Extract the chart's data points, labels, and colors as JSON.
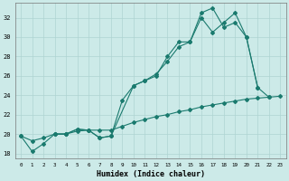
{
  "xlabel": "Humidex (Indice chaleur)",
  "bg_color": "#cceae8",
  "grid_color": "#aed4d2",
  "line_color": "#1a7a6e",
  "xlim": [
    -0.5,
    23.5
  ],
  "ylim": [
    17.5,
    33.5
  ],
  "yticks": [
    18,
    20,
    22,
    24,
    26,
    28,
    30,
    32
  ],
  "xticks": [
    0,
    1,
    2,
    3,
    4,
    5,
    6,
    7,
    8,
    9,
    10,
    11,
    12,
    13,
    14,
    15,
    16,
    17,
    18,
    19,
    20,
    21,
    22,
    23
  ],
  "s1_x": [
    0,
    1,
    2,
    3,
    4,
    5,
    6,
    7,
    8,
    9,
    10,
    11,
    12,
    13,
    14,
    15,
    16,
    17,
    18,
    19,
    20,
    21,
    22
  ],
  "s1_y": [
    19.8,
    18.2,
    19.0,
    20.0,
    20.0,
    20.5,
    20.4,
    19.6,
    19.8,
    23.5,
    25.0,
    25.5,
    26.0,
    28.0,
    29.5,
    29.5,
    32.5,
    33.0,
    31.0,
    31.5,
    30.0,
    24.8,
    23.8
  ],
  "s2_x": [
    3,
    4,
    5,
    6,
    7,
    8,
    10,
    11,
    12,
    13,
    14,
    15,
    16,
    17,
    18,
    19,
    20,
    21
  ],
  "s2_y": [
    20.0,
    20.0,
    20.5,
    20.4,
    19.6,
    19.8,
    25.0,
    25.5,
    26.2,
    27.5,
    29.0,
    29.5,
    32.0,
    30.5,
    31.5,
    32.5,
    30.0,
    24.8
  ],
  "s3_x": [
    0,
    1,
    2,
    3,
    4,
    5,
    6,
    7,
    8,
    9,
    10,
    11,
    12,
    13,
    14,
    15,
    16,
    17,
    18,
    19,
    20,
    21,
    22,
    23
  ],
  "s3_y": [
    19.8,
    19.3,
    19.6,
    20.0,
    20.0,
    20.3,
    20.4,
    20.4,
    20.4,
    20.8,
    21.2,
    21.5,
    21.8,
    22.0,
    22.3,
    22.5,
    22.8,
    23.0,
    23.2,
    23.4,
    23.6,
    23.7,
    23.8,
    23.9
  ]
}
